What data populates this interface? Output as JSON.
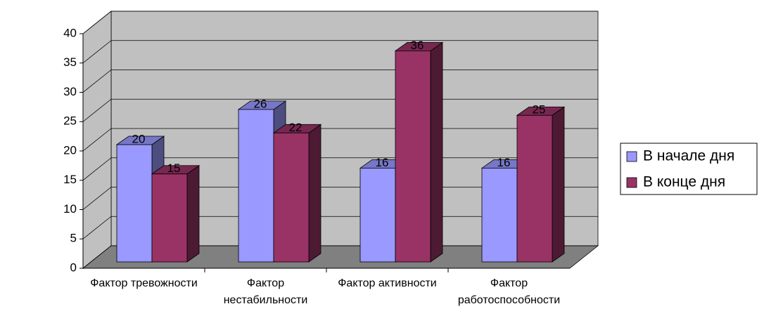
{
  "chart_data": {
    "type": "bar3d",
    "categories": [
      "Фактор тревожности",
      "Фактор нестабильности",
      "Фактор активности",
      "Фактор работоспособности"
    ],
    "series": [
      {
        "name": "В начале дня",
        "color": "#9999ff",
        "values": [
          20,
          26,
          16,
          16
        ]
      },
      {
        "name": "В конце дня",
        "color": "#993366",
        "values": [
          15,
          22,
          36,
          25
        ]
      }
    ],
    "ylim": [
      0,
      40
    ],
    "yticks": [
      0,
      5,
      10,
      15,
      20,
      25,
      30,
      35,
      40
    ],
    "grid": true,
    "legend": "right"
  }
}
